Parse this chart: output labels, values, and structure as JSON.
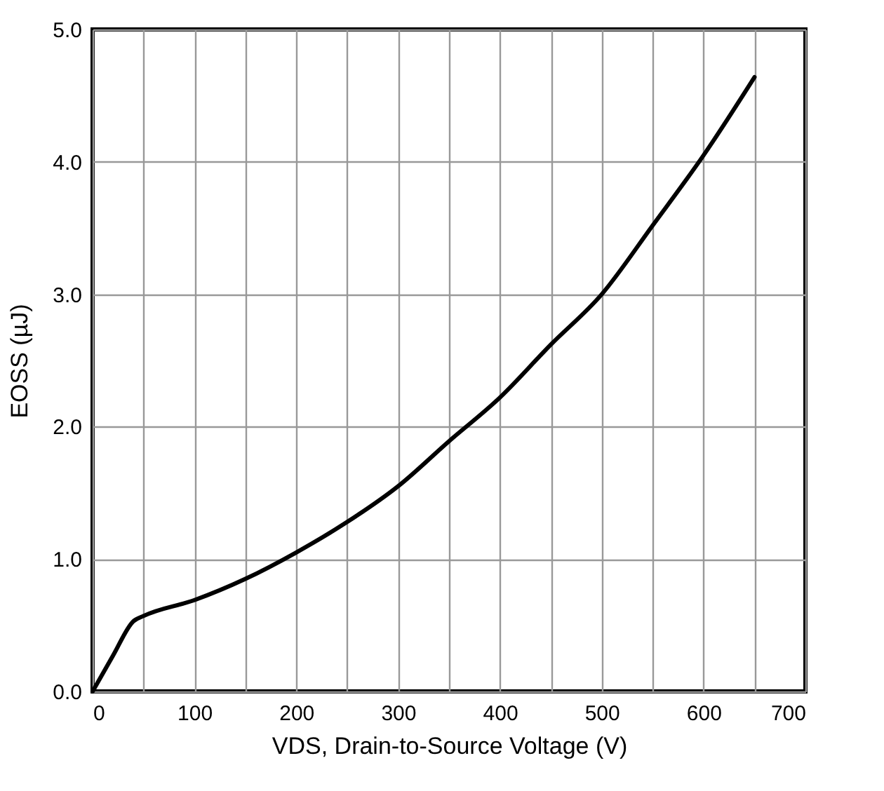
{
  "chart_data": {
    "type": "line",
    "xlabel": "VDS, Drain-to-Source Voltage (V)",
    "ylabel": "EOSS (µJ)",
    "x": [
      0,
      20,
      40,
      50,
      100,
      150,
      200,
      250,
      300,
      350,
      400,
      450,
      500,
      550,
      600,
      650
    ],
    "series": [
      {
        "color": "#000000",
        "values": [
          0,
          0.27,
          0.53,
          0.57,
          0.69,
          0.85,
          1.05,
          1.28,
          1.55,
          1.89,
          2.22,
          2.62,
          3.0,
          3.52,
          4.05,
          4.64
        ]
      }
    ],
    "xlim": [
      0,
      700
    ],
    "xticks": [
      0,
      {
        "value": 50,
        "label": null
      },
      100,
      {
        "value": 150,
        "label": null
      },
      200,
      {
        "value": 250,
        "label": null
      },
      300,
      {
        "value": 350,
        "label": null
      },
      400,
      {
        "value": 450,
        "label": null
      },
      500,
      {
        "value": 550,
        "label": null
      },
      600,
      {
        "value": 650,
        "label": null
      },
      700
    ],
    "ylim": [
      0,
      5
    ],
    "yticks": [
      {
        "value": 0,
        "label": "0.0"
      },
      {
        "value": 1,
        "label": "1.0"
      },
      {
        "value": 2,
        "label": "2.0"
      },
      {
        "value": 3,
        "label": "3.0"
      },
      {
        "value": 4,
        "label": "4.0"
      },
      {
        "value": 5,
        "label": "5.0"
      }
    ],
    "grid": true,
    "marker": "none",
    "line_style": "solid"
  }
}
